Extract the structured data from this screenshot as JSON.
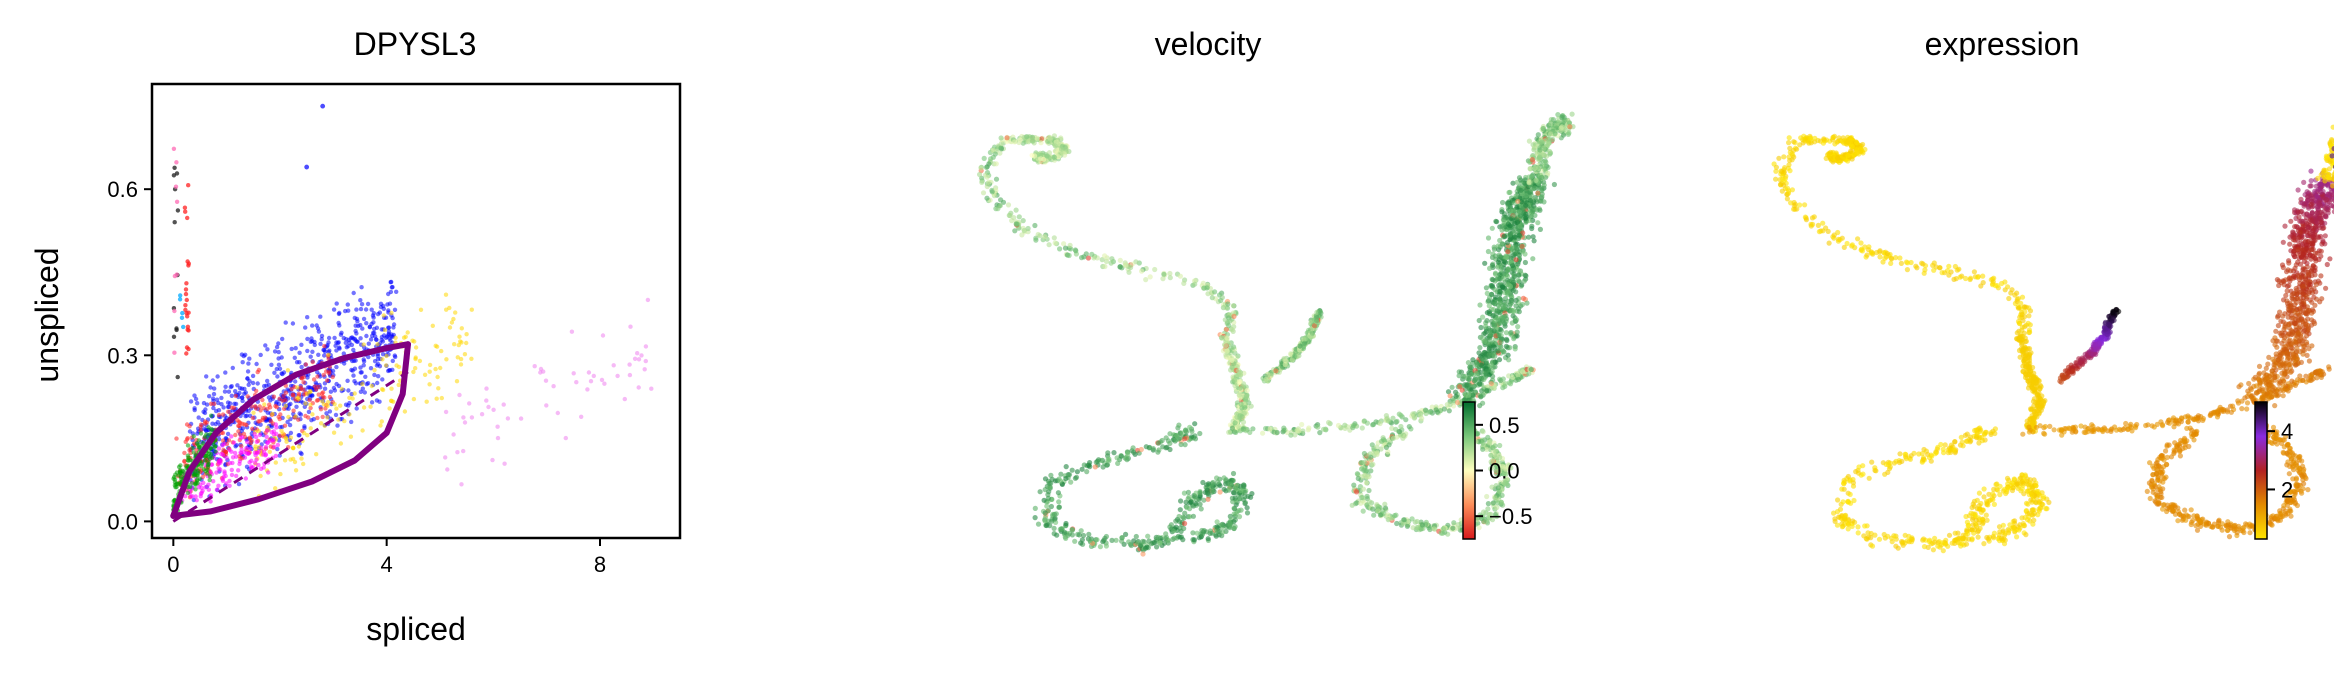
{
  "chart_data": [
    {
      "type": "scatter",
      "title": "DPYSL3",
      "xlabel": "spliced",
      "ylabel": "unspliced",
      "xlim": [
        -0.4,
        9.5
      ],
      "ylim": [
        -0.03,
        0.79
      ],
      "xticks": [
        0,
        4,
        8
      ],
      "xtick_labels": [
        "0",
        "4",
        "8"
      ],
      "yticks": [
        0.0,
        0.3,
        0.6
      ],
      "ytick_labels": [
        "0.0",
        "0.3",
        "0.6"
      ],
      "grid": false,
      "clusters": [
        {
          "color": "#0000ff",
          "x_range": [
            0.3,
            4.2
          ],
          "y_range": [
            0.03,
            0.45
          ],
          "count": 700
        },
        {
          "color": "#ff2020",
          "x_range": [
            0.05,
            3.0
          ],
          "y_range": [
            0.02,
            0.33
          ],
          "count": 240
        },
        {
          "color": "#ffd700",
          "x_range": [
            1.5,
            5.6
          ],
          "y_range": [
            0.03,
            0.45
          ],
          "count": 170
        },
        {
          "color": "#ff00ff",
          "x_range": [
            0.1,
            2.0
          ],
          "y_range": [
            0.0,
            0.2
          ],
          "count": 150
        },
        {
          "color": "#00a000",
          "x_range": [
            0.0,
            0.8
          ],
          "y_range": [
            0.0,
            0.2
          ],
          "count": 180
        },
        {
          "color": "#ee82ee",
          "x_range": [
            5.0,
            9.0
          ],
          "y_range": [
            0.05,
            0.4
          ],
          "count": 60
        }
      ],
      "column_points": [
        {
          "x": 0.05,
          "y_min": 0.25,
          "y_max": 0.65,
          "color": "#1a1a1a",
          "count": 12
        },
        {
          "x": 0.25,
          "y_min": 0.3,
          "y_max": 0.62,
          "color": "#ff2020",
          "count": 22
        },
        {
          "x": 0.05,
          "y_min": 0.3,
          "y_max": 0.7,
          "color": "#ff69b4",
          "count": 8
        },
        {
          "x": 0.15,
          "y_min": 0.35,
          "y_max": 0.45,
          "color": "#00aaff",
          "count": 5
        }
      ],
      "outlier_points": [
        {
          "x": 2.8,
          "y": 0.75,
          "color": "#0000ff"
        },
        {
          "x": 2.5,
          "y": 0.64,
          "color": "#0000ff"
        }
      ],
      "model_curve": {
        "color": "#800080",
        "steady_state": [
          4.4,
          0.32
        ],
        "upper_branch": [
          [
            0.0,
            0.01
          ],
          [
            0.3,
            0.09
          ],
          [
            0.8,
            0.16
          ],
          [
            1.5,
            0.22
          ],
          [
            2.3,
            0.265
          ],
          [
            3.2,
            0.295
          ],
          [
            4.0,
            0.313
          ],
          [
            4.4,
            0.32
          ]
        ],
        "lower_branch": [
          [
            4.4,
            0.32
          ],
          [
            4.3,
            0.23
          ],
          [
            4.0,
            0.16
          ],
          [
            3.4,
            0.11
          ],
          [
            2.6,
            0.072
          ],
          [
            1.6,
            0.04
          ],
          [
            0.7,
            0.018
          ],
          [
            0.0,
            0.01
          ]
        ],
        "dashed_line": [
          [
            0.0,
            0.0
          ],
          [
            4.4,
            0.27
          ]
        ]
      }
    },
    {
      "type": "scatter",
      "title": "velocity",
      "colorbar": {
        "ticks": [
          0.5,
          0.0,
          -0.5
        ],
        "tick_labels": [
          "0.5",
          "0.0",
          "−0.5"
        ],
        "range": [
          -0.75,
          0.75
        ],
        "colors": [
          "#006d2c",
          "#78c679",
          "#ffffbf",
          "#fc8d59",
          "#d7191c"
        ]
      }
    },
    {
      "type": "scatter",
      "title": "expression",
      "colorbar": {
        "ticks": [
          4,
          2
        ],
        "tick_labels": [
          "4",
          "2"
        ],
        "range": [
          0.3,
          5.0
        ],
        "colors": [
          "#000000",
          "#8a2be2",
          "#b22222",
          "#e38b00",
          "#ffe600"
        ]
      }
    }
  ]
}
